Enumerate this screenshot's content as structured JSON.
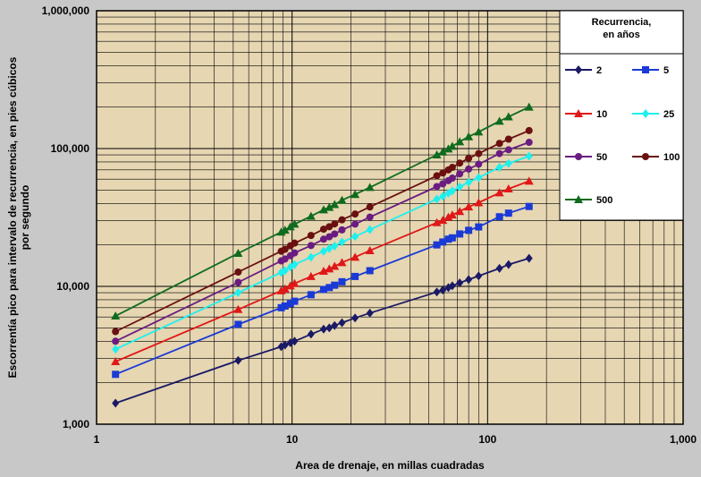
{
  "chart_data": {
    "type": "line",
    "scale": "log-log",
    "grid": true,
    "legend_placement": "top-right (inside plot)",
    "title": "",
    "xlabel": "Area de drenaje, en millas cuadradas",
    "ylabel": "Escorrentía pico para intervalo de recurrencia, en pies cúbicos por segundo",
    "xlim": [
      1,
      1000
    ],
    "ylim": [
      1000,
      1000000
    ],
    "x_ticks": [
      {
        "value": 1,
        "label": "1"
      },
      {
        "value": 10,
        "label": "10"
      },
      {
        "value": 100,
        "label": "100"
      },
      {
        "value": 1000,
        "label": "1,000"
      }
    ],
    "y_ticks": [
      {
        "value": 1000,
        "label": "1,000"
      },
      {
        "value": 10000,
        "label": "10,000"
      },
      {
        "value": 100000,
        "label": "100,000"
      },
      {
        "value": 1000000,
        "label": "1,000,000"
      }
    ],
    "legend_title": "Recurrencia, en años",
    "x": [
      1.25,
      5.3,
      8.8,
      9.2,
      9.8,
      10.3,
      12.5,
      14.5,
      15.5,
      16.5,
      18.0,
      21.0,
      25.0,
      55.0,
      59.0,
      63.0,
      66.0,
      72.0,
      80.0,
      90.0,
      115.0,
      128.0,
      163.0
    ],
    "series": [
      {
        "name": "2",
        "color": "#1a1a66",
        "marker": "diamond",
        "values": [
          1420,
          2900,
          3650,
          3750,
          3900,
          4000,
          4500,
          4900,
          5000,
          5200,
          5450,
          5900,
          6400,
          9100,
          9400,
          9800,
          10100,
          10600,
          11200,
          11900,
          13500,
          14400,
          16000
        ]
      },
      {
        "name": "5",
        "color": "#1a3ad6",
        "marker": "square",
        "values": [
          2300,
          5300,
          7000,
          7200,
          7500,
          7800,
          8700,
          9500,
          9800,
          10200,
          10800,
          11800,
          13000,
          20000,
          21000,
          22000,
          22500,
          24000,
          25500,
          27000,
          32000,
          34000,
          38000
        ]
      },
      {
        "name": "10",
        "color": "#e01818",
        "marker": "triangle",
        "values": [
          2850,
          6800,
          9300,
          9600,
          10100,
          10500,
          11800,
          12900,
          13400,
          14000,
          14900,
          16300,
          18200,
          29000,
          30200,
          31800,
          33000,
          35000,
          37800,
          40500,
          47800,
          51000,
          58000
        ]
      },
      {
        "name": "25",
        "color": "#1ef0ee",
        "marker": "diamond",
        "values": [
          3500,
          9000,
          12600,
          13000,
          13800,
          14400,
          16300,
          18000,
          18800,
          19600,
          21000,
          23000,
          25800,
          43000,
          45000,
          47400,
          49200,
          52800,
          57000,
          61500,
          73000,
          78000,
          88000
        ]
      },
      {
        "name": "50",
        "color": "#6a1c80",
        "marker": "circle",
        "values": [
          4000,
          10700,
          15300,
          15800,
          16700,
          17500,
          19800,
          22000,
          22900,
          24000,
          25700,
          28300,
          31800,
          53000,
          55500,
          58500,
          61000,
          65500,
          71000,
          77000,
          92000,
          98000,
          111000
        ]
      },
      {
        "name": "100",
        "color": "#6a1010",
        "marker": "circle",
        "values": [
          4700,
          12700,
          18000,
          18600,
          19700,
          20600,
          23400,
          26000,
          27100,
          28400,
          30400,
          33500,
          37700,
          63500,
          66500,
          70000,
          73000,
          78500,
          85000,
          92000,
          109000,
          117000,
          135000
        ]
      },
      {
        "name": "500",
        "color": "#0f6b1e",
        "marker": "triangle",
        "values": [
          6100,
          17400,
          24800,
          25600,
          27100,
          28300,
          32300,
          36000,
          37500,
          39300,
          42200,
          46500,
          52300,
          90000,
          94500,
          99500,
          104000,
          112000,
          122000,
          132000,
          158000,
          170000,
          200000
        ]
      }
    ]
  }
}
